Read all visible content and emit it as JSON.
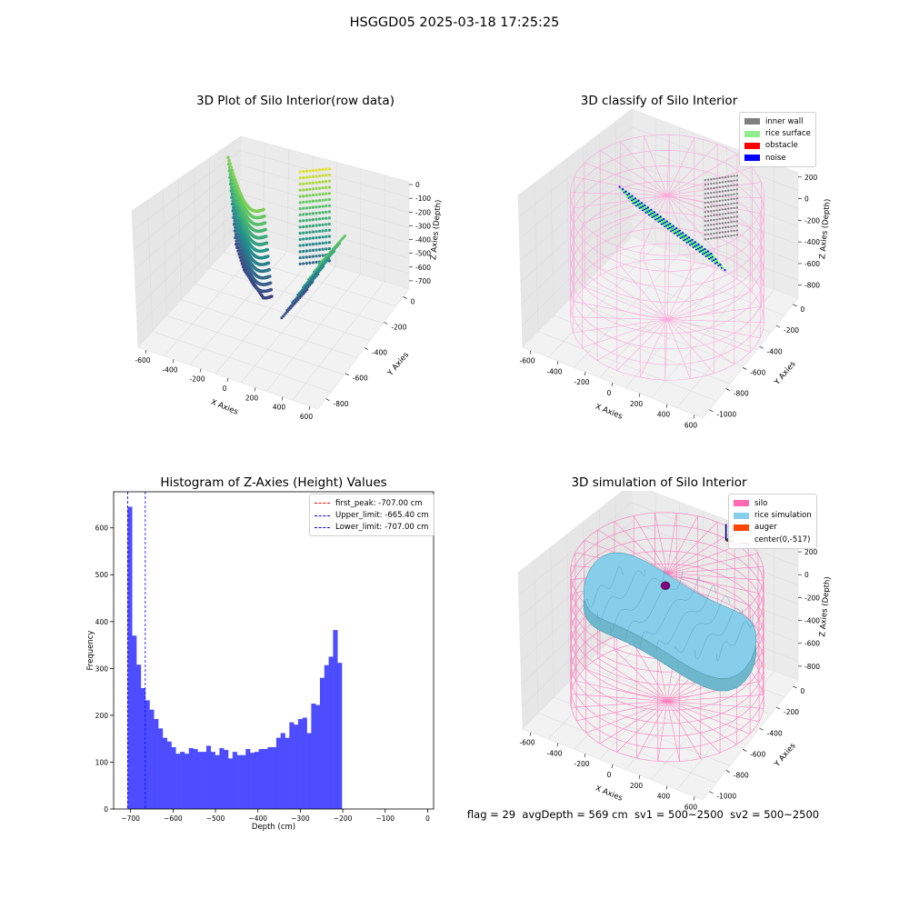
{
  "figure": {
    "title": "HSGGD05 2025-03-18 17:25:25",
    "status_line": "flag = 29  avgDepth = 569 cm  sv1 = 500~2500  sv2 = 500~2500"
  },
  "panels": {
    "raw": {
      "title": "3D Plot of Silo Interior(row data)",
      "xlabel": "X Axies",
      "ylabel": "Y Axies",
      "zlabel": "Z Axies (Depth)",
      "xticks": [
        "-600",
        "-400",
        "-200",
        "0",
        "200",
        "400",
        "600"
      ],
      "yticks": [
        "0",
        "-200",
        "-400",
        "-600",
        "-800"
      ],
      "zticks": [
        "0",
        "-100",
        "-200",
        "-300",
        "-400",
        "-500",
        "-600",
        "-700"
      ]
    },
    "classify": {
      "title": "3D classify of Silo Interior",
      "xlabel": "X Axies",
      "ylabel": "Y Axies",
      "zlabel": "Z Axies (Depth)",
      "xticks": [
        "-600",
        "-400",
        "-200",
        "0",
        "200",
        "400",
        "600"
      ],
      "yticks": [
        "0",
        "-200",
        "-400",
        "-600",
        "-800",
        "-1000"
      ],
      "zticks": [
        "200",
        "0",
        "-200",
        "-400",
        "-600",
        "-800"
      ],
      "legend": [
        {
          "label": "inner wall",
          "color": "#808080"
        },
        {
          "label": "rice surface",
          "color": "#90ee90"
        },
        {
          "label": "obstacle",
          "color": "#ff0000"
        },
        {
          "label": "noise",
          "color": "#0000ff"
        }
      ]
    },
    "simulation": {
      "title": "3D simulation of Silo Interior",
      "xlabel": "X Axies",
      "ylabel": "Y Axies",
      "zlabel": "Z Axies (Depth)",
      "xticks": [
        "-600",
        "-400",
        "-200",
        "0",
        "200",
        "400",
        "600"
      ],
      "yticks": [
        "0",
        "-200",
        "-400",
        "-600",
        "-800",
        "-1000"
      ],
      "zticks": [
        "200",
        "0",
        "-200",
        "-400",
        "-600",
        "-800"
      ],
      "legend": [
        {
          "label": "silo",
          "color": "#ff69b4"
        },
        {
          "label": "rice simulation",
          "color": "#87ceeb"
        },
        {
          "label": "auger",
          "color": "#ff4500"
        },
        {
          "label": "center(0,-517)",
          "color": "#ffffff"
        }
      ]
    }
  },
  "chart_data": {
    "type": "bar",
    "title": "Histogram of Z-Axies (Height) Values",
    "xlabel": "Depth (cm)",
    "ylabel": "Frequency",
    "xlim": [
      -740,
      14
    ],
    "ylim": [
      0,
      677
    ],
    "xticks": [
      -700,
      -600,
      -500,
      -400,
      -300,
      -200,
      -100,
      0
    ],
    "yticks": [
      0,
      100,
      200,
      300,
      400,
      500,
      600
    ],
    "bar_color": "#4d4dff",
    "bin_width": 10.3,
    "bin_start": -707,
    "values": [
      645,
      370,
      308,
      258,
      232,
      212,
      192,
      172,
      152,
      144,
      132,
      118,
      122,
      118,
      130,
      128,
      122,
      122,
      135,
      122,
      115,
      130,
      126,
      108,
      122,
      115,
      115,
      128,
      120,
      122,
      128,
      128,
      132,
      132,
      152,
      162,
      152,
      185,
      180,
      192,
      195,
      162,
      225,
      222,
      280,
      307,
      325,
      382,
      312
    ],
    "reference_lines": [
      {
        "name": "first_peak: -707.00 cm",
        "value": -707.0,
        "color": "#ff0000"
      },
      {
        "name": "Upper_limit: -665.40 cm",
        "value": -665.4,
        "color": "#0000ff"
      },
      {
        "name": "Lower_limit: -707.00 cm",
        "value": -707.0,
        "color": "#0000ff"
      }
    ]
  }
}
